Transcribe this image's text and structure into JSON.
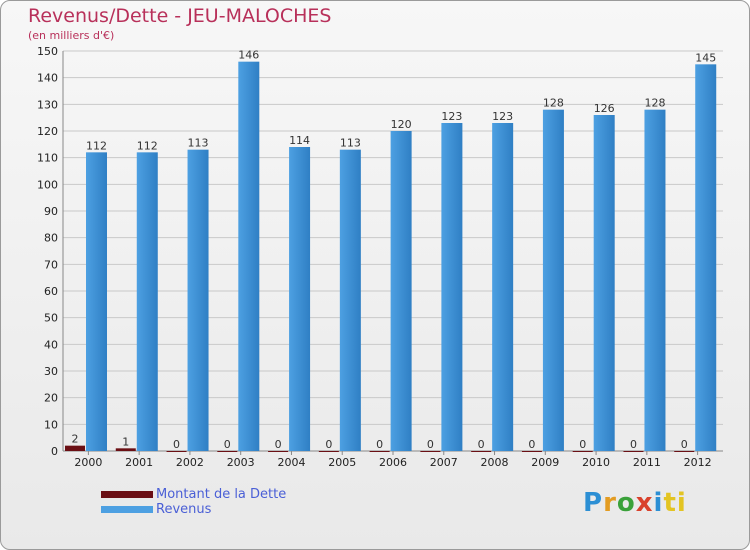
{
  "header": {
    "title": "Revenus/Dette - JEU-MALOCHES",
    "subtitle": "(en milliers d'€)"
  },
  "legend": {
    "debt_label": "Montant de la Dette",
    "revenue_label": "Revenus"
  },
  "logo": {
    "letters": [
      "P",
      "r",
      "o",
      "x",
      "i",
      "ti"
    ]
  },
  "colors": {
    "debt": "#6b0f14",
    "revenue": "#4da0e2",
    "revenue_dark": "#2f7fc4",
    "grid": "#c9c9c9",
    "axis_text": "#222222",
    "title": "#b8305a"
  },
  "chart_data": {
    "type": "bar",
    "title": "Revenus/Dette - JEU-MALOCHES",
    "subtitle": "(en milliers d'€)",
    "xlabel": "",
    "ylabel": "",
    "ylim": [
      0,
      150
    ],
    "y_ticks": [
      0,
      10,
      20,
      30,
      40,
      50,
      60,
      70,
      80,
      90,
      100,
      110,
      120,
      130,
      140,
      150
    ],
    "grid": true,
    "categories": [
      "2000",
      "2001",
      "2002",
      "2003",
      "2004",
      "2005",
      "2006",
      "2007",
      "2008",
      "2009",
      "2010",
      "2011",
      "2012"
    ],
    "series": [
      {
        "name": "Montant de la Dette",
        "values": [
          2,
          1,
          0,
          0,
          0,
          0,
          0,
          0,
          0,
          0,
          0,
          0,
          0
        ]
      },
      {
        "name": "Revenus",
        "values": [
          112,
          112,
          113,
          146,
          114,
          113,
          120,
          123,
          123,
          128,
          126,
          128,
          145
        ]
      }
    ]
  }
}
